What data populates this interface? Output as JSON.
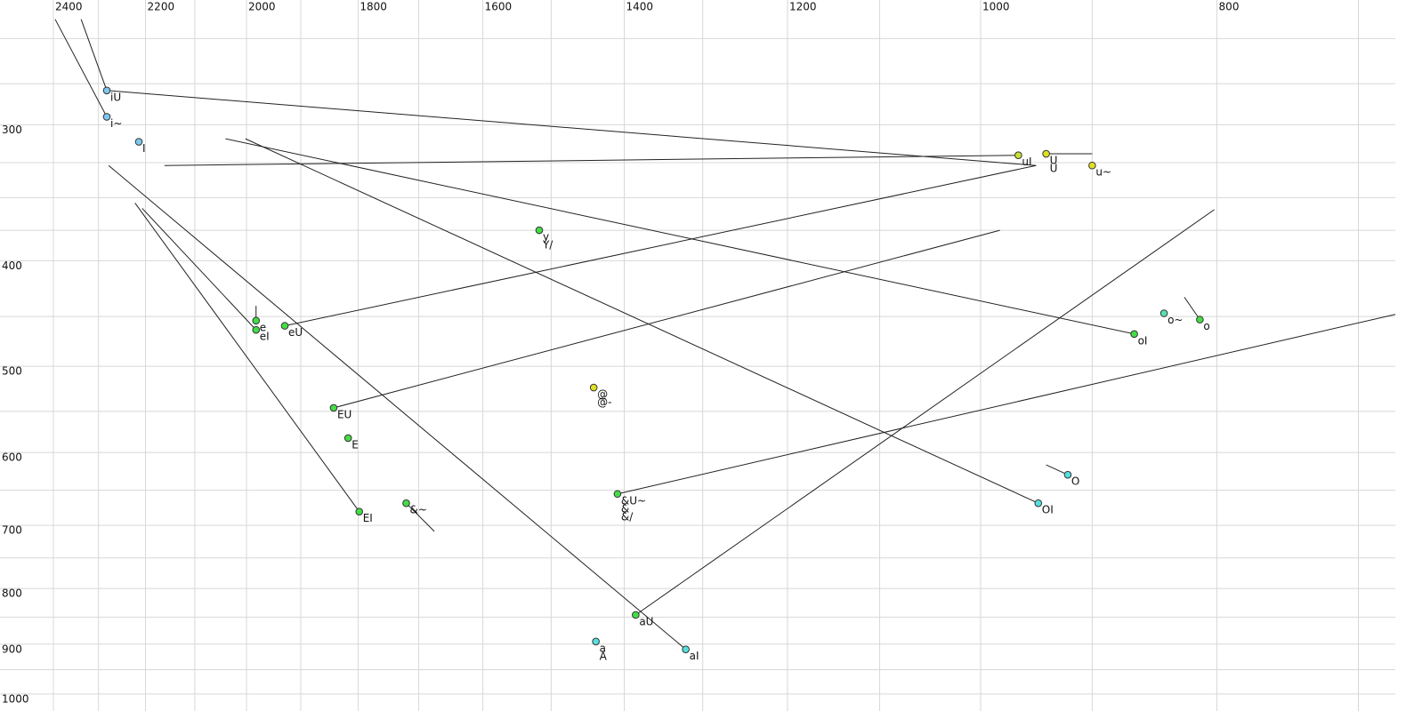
{
  "chart_data": {
    "type": "scatter",
    "log_x": true,
    "log_y": true,
    "grid": true,
    "xlim": [
      2400,
      676
    ],
    "ylim": [
      237,
      1027
    ],
    "xticks": [
      2400,
      2200,
      2000,
      1800,
      1600,
      1400,
      1200,
      1000,
      800
    ],
    "xgrid": [
      2300,
      2100,
      1900,
      1700,
      1500,
      1300,
      1100,
      900,
      700
    ],
    "yticks": [
      300,
      400,
      500,
      600,
      700,
      800,
      900,
      1000
    ],
    "ygrid": [
      250,
      275,
      325,
      350,
      375,
      450,
      550,
      650,
      750,
      850,
      950
    ],
    "points": [
      {
        "x": 2282,
        "y": 279,
        "color": "#7ec8f0",
        "labels": [
          "iU"
        ]
      },
      {
        "x": 2282,
        "y": 295,
        "color": "#7ec8f0",
        "labels": [
          "i~"
        ]
      },
      {
        "x": 2214,
        "y": 311,
        "color": "#7ec8f0",
        "labels": [
          "I"
        ]
      },
      {
        "x": 965,
        "y": 320,
        "color": "#c8e030",
        "labels": [
          "uI"
        ]
      },
      {
        "x": 940,
        "y": 319,
        "color": "#e0e020",
        "labels": [
          "U",
          "U"
        ]
      },
      {
        "x": 900,
        "y": 327,
        "color": "#e0e020",
        "labels": [
          "u~"
        ]
      },
      {
        "x": 1517,
        "y": 375,
        "color": "#44dd44",
        "labels": [
          "y",
          "Y/"
        ]
      },
      {
        "x": 1982,
        "y": 454,
        "color": "#44dd44",
        "labels": [
          "e"
        ]
      },
      {
        "x": 1982,
        "y": 463,
        "color": "#44dd44",
        "labels": [
          "eI"
        ]
      },
      {
        "x": 1929,
        "y": 459,
        "color": "#44dd44",
        "labels": [
          "eU"
        ]
      },
      {
        "x": 841,
        "y": 447,
        "color": "#55e0b0",
        "labels": [
          "o~"
        ]
      },
      {
        "x": 813,
        "y": 453,
        "color": "#44dd44",
        "labels": [
          "o"
        ]
      },
      {
        "x": 865,
        "y": 467,
        "color": "#44dd44",
        "labels": [
          "oI"
        ]
      },
      {
        "x": 1441,
        "y": 523,
        "color": "#e0e020",
        "labels": [
          "@",
          "@-"
        ]
      },
      {
        "x": 1842,
        "y": 546,
        "color": "#44dd44",
        "labels": [
          "EU"
        ]
      },
      {
        "x": 1817,
        "y": 582,
        "color": "#44dd44",
        "labels": [
          "E"
        ]
      },
      {
        "x": 921,
        "y": 629,
        "color": "#55e0e0",
        "labels": [
          "O"
        ]
      },
      {
        "x": 947,
        "y": 668,
        "color": "#55e0e0",
        "labels": [
          "OI"
        ]
      },
      {
        "x": 1720,
        "y": 668,
        "color": "#44dd44",
        "labels": [
          "&~"
        ]
      },
      {
        "x": 1409,
        "y": 655,
        "color": "#44dd44",
        "labels": [
          "&U~",
          "&",
          "&/"
        ]
      },
      {
        "x": 1798,
        "y": 680,
        "color": "#44dd44",
        "labels": [
          "EI"
        ]
      },
      {
        "x": 1385,
        "y": 846,
        "color": "#44dd44",
        "labels": [
          "aU"
        ]
      },
      {
        "x": 1438,
        "y": 895,
        "color": "#55e0e0",
        "labels": [
          "a",
          "A"
        ]
      },
      {
        "x": 1321,
        "y": 910,
        "color": "#55e0e0",
        "labels": [
          "aI"
        ]
      }
    ],
    "lines": [
      {
        "x": [
          2396,
          2282
        ],
        "y": [
          240,
          295
        ]
      },
      {
        "x": [
          2338,
          2282
        ],
        "y": [
          240,
          279
        ]
      },
      {
        "x": [
          2282,
          949
        ],
        "y": [
          279,
          327
        ]
      },
      {
        "x": [
          2161,
          965
        ],
        "y": [
          327,
          320
        ]
      },
      {
        "x": [
          940,
          900
        ],
        "y": [
          319,
          319
        ]
      },
      {
        "x": [
          2040,
          865
        ],
        "y": [
          309,
          467
        ]
      },
      {
        "x": [
          2002,
          947
        ],
        "y": [
          309,
          668
        ]
      },
      {
        "x": [
          1929,
          949
        ],
        "y": [
          459,
          327
        ]
      },
      {
        "x": [
          1842,
          982
        ],
        "y": [
          546,
          375
        ]
      },
      {
        "x": [
          1982,
          1982
        ],
        "y": [
          440,
          454
        ]
      },
      {
        "x": [
          2278,
          1321
        ],
        "y": [
          327,
          910
        ]
      },
      {
        "x": [
          1385,
          802
        ],
        "y": [
          846,
          359
        ]
      },
      {
        "x": [
          2222,
          1798
        ],
        "y": [
          354,
          680
        ]
      },
      {
        "x": [
          2207,
          1982
        ],
        "y": [
          358,
          463
        ]
      },
      {
        "x": [
          1720,
          1675
        ],
        "y": [
          668,
          709
        ]
      },
      {
        "x": [
          1409,
          676
        ],
        "y": [
          655,
          448
        ]
      },
      {
        "x": [
          940,
          921
        ],
        "y": [
          616,
          629
        ]
      },
      {
        "x": [
          825,
          813
        ],
        "y": [
          432,
          453
        ]
      }
    ]
  }
}
